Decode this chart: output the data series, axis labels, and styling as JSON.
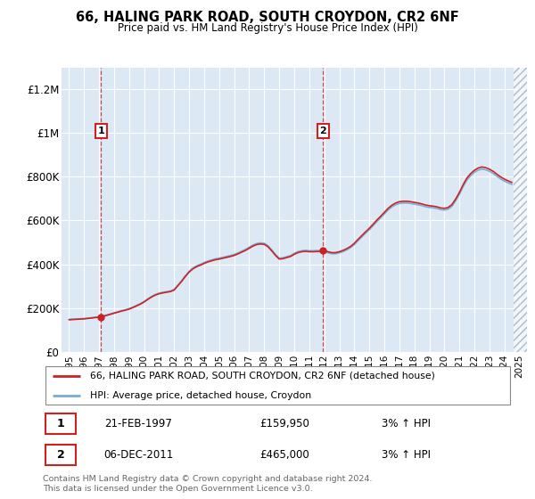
{
  "title": "66, HALING PARK ROAD, SOUTH CROYDON, CR2 6NF",
  "subtitle": "Price paid vs. HM Land Registry's House Price Index (HPI)",
  "sale1_date": "21-FEB-1997",
  "sale1_price": 159950,
  "sale1_label": "£159,950",
  "sale1_hpi": "3% ↑ HPI",
  "sale2_date": "06-DEC-2011",
  "sale2_price": 465000,
  "sale2_label": "£465,000",
  "sale2_hpi": "3% ↑ HPI",
  "legend_line1": "66, HALING PARK ROAD, SOUTH CROYDON, CR2 6NF (detached house)",
  "legend_line2": "HPI: Average price, detached house, Croydon",
  "footer": "Contains HM Land Registry data © Crown copyright and database right 2024.\nThis data is licensed under the Open Government Licence v3.0.",
  "hpi_color": "#7aadd4",
  "price_color": "#cc2222",
  "background_color": "#dce9f5",
  "ylim": [
    0,
    1300000
  ],
  "yticks": [
    0,
    200000,
    400000,
    600000,
    800000,
    1000000,
    1200000
  ],
  "ytick_labels": [
    "£0",
    "£200K",
    "£400K",
    "£600K",
    "£800K",
    "£1M",
    "£1.2M"
  ],
  "sale1_year": 1997.13,
  "sale2_year": 2011.92,
  "xmin": 1994.5,
  "xmax": 2025.5
}
